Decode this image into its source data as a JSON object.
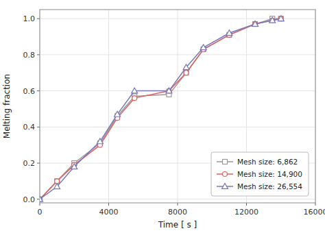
{
  "chart_data": {
    "type": "line",
    "xlabel": "Time [ s ]",
    "ylabel": "Melting fraction",
    "x": [
      0,
      1000,
      2000,
      3500,
      4500,
      5500,
      7500,
      8500,
      9500,
      11000,
      12500,
      13500,
      14000
    ],
    "series": [
      {
        "name": "Mesh size: 6,862",
        "color": "#999999",
        "marker": "square",
        "values": [
          0.0,
          0.1,
          0.2,
          0.31,
          0.46,
          0.57,
          0.58,
          0.7,
          0.83,
          0.91,
          0.97,
          1.0,
          1.0
        ]
      },
      {
        "name": "Mesh size: 14,900",
        "color": "#e06060",
        "marker": "circle",
        "values": [
          0.0,
          0.1,
          0.19,
          0.3,
          0.45,
          0.56,
          0.6,
          0.7,
          0.83,
          0.91,
          0.97,
          0.99,
          1.0
        ]
      },
      {
        "name": "Mesh size: 26,554",
        "color": "#7777bb",
        "marker": "triangle",
        "values": [
          0.0,
          0.07,
          0.18,
          0.32,
          0.47,
          0.6,
          0.6,
          0.73,
          0.84,
          0.92,
          0.97,
          0.99,
          1.0
        ]
      }
    ],
    "xlim": [
      0,
      16000
    ],
    "ylim": [
      -0.02,
      1.05
    ],
    "xticks": [
      0,
      4000,
      8000,
      12000,
      16000
    ],
    "yticks": [
      {
        "value": 0.0,
        "label": "0.0"
      },
      0.2,
      0.4,
      0.6,
      0.8,
      {
        "value": 1.0,
        "label": "1.0"
      }
    ],
    "grid": true,
    "legend": "lower right"
  }
}
